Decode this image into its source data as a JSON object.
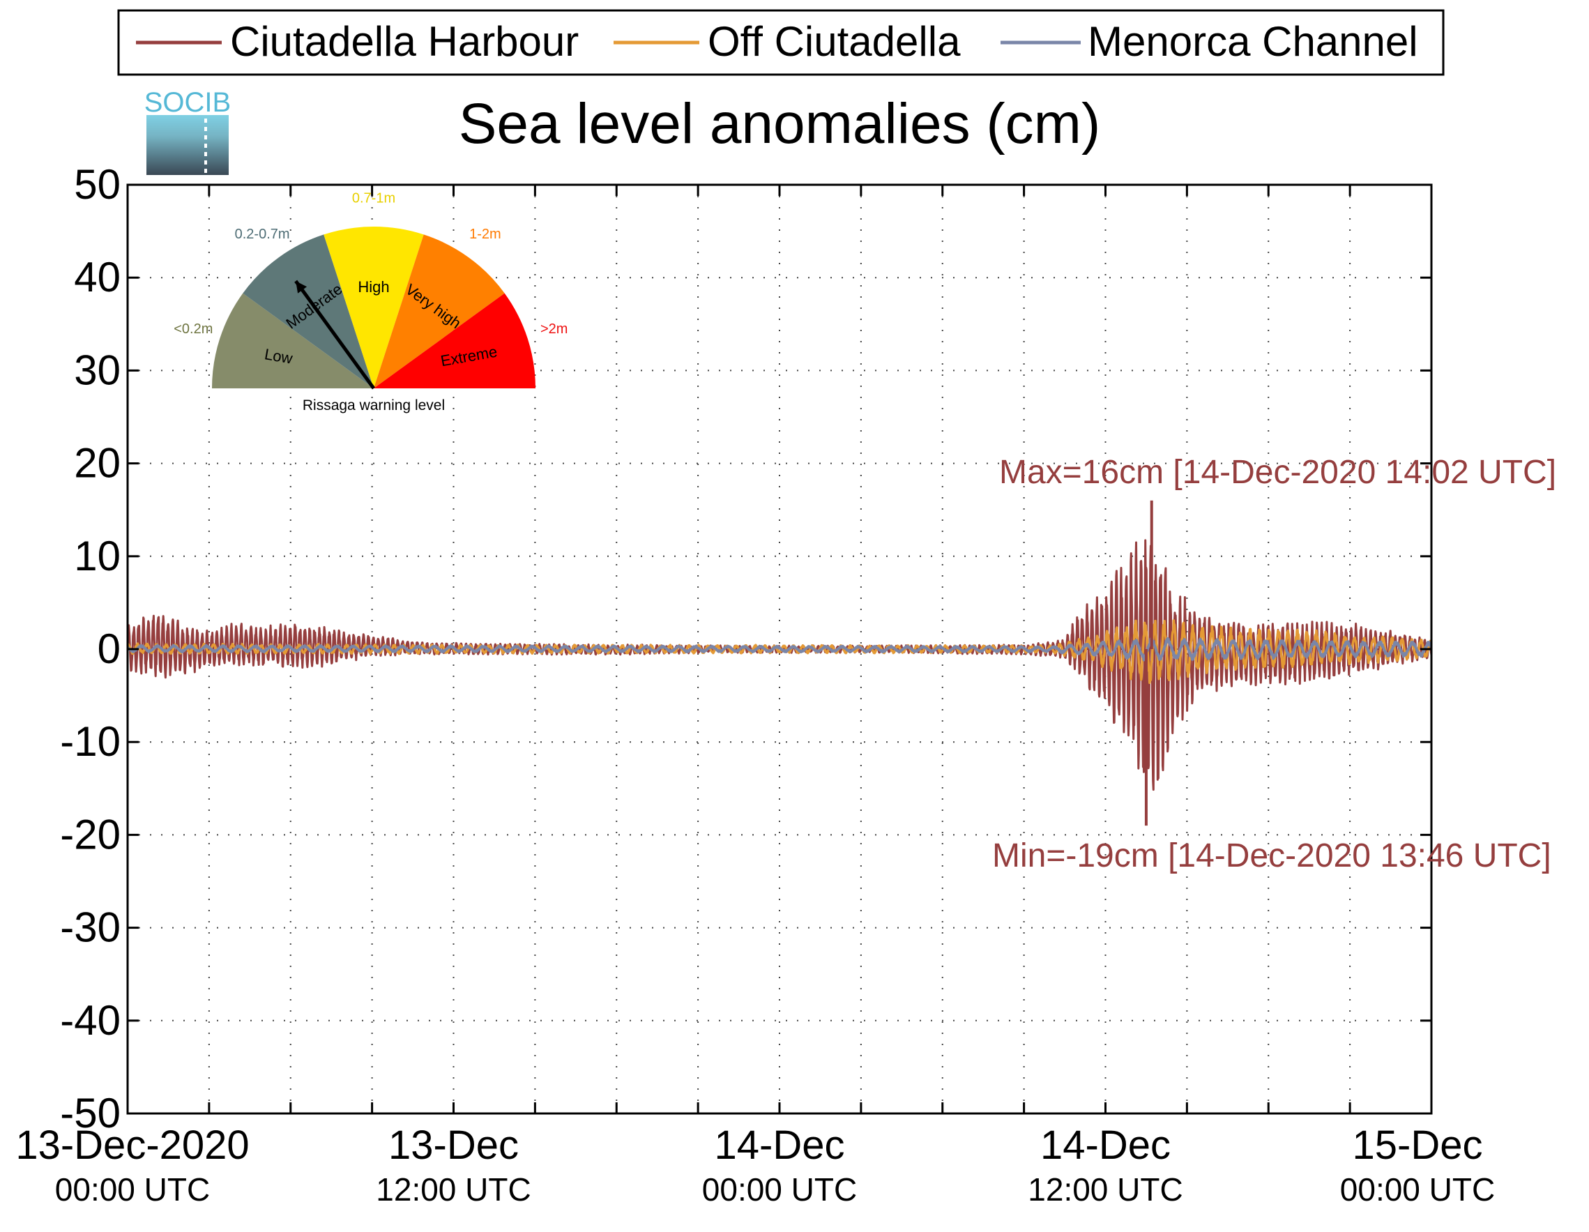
{
  "chart_data": {
    "type": "line",
    "title": "Sea level anomalies (cm)",
    "logo_text": "SOCIB",
    "legend": {
      "placement": "top",
      "entries": [
        {
          "name": "Ciutadella Harbour",
          "color": "#953e3e"
        },
        {
          "name": "Off Ciutadella",
          "color": "#e49a35"
        },
        {
          "name": "Menorca Channel",
          "color": "#7a86a8"
        }
      ]
    },
    "x_axis": {
      "unit": "hours since 13-Dec-2020 00:00 UTC",
      "range": [
        0,
        48
      ],
      "major_ticks": [
        {
          "x": 0,
          "line1": "13-Dec-2020",
          "line2": "00:00 UTC"
        },
        {
          "x": 12,
          "line1": "13-Dec",
          "line2": "12:00 UTC"
        },
        {
          "x": 24,
          "line1": "14-Dec",
          "line2": "00:00 UTC"
        },
        {
          "x": 36,
          "line1": "14-Dec",
          "line2": "12:00 UTC"
        },
        {
          "x": 48,
          "line1": "15-Dec",
          "line2": "00:00 UTC"
        }
      ],
      "minor_ticks": [
        3,
        6,
        9,
        15,
        18,
        21,
        27,
        30,
        33,
        39,
        42,
        45
      ]
    },
    "y_axis": {
      "range": [
        -50,
        50
      ],
      "ticks": [
        50,
        40,
        30,
        20,
        10,
        0,
        -10,
        -20,
        -30,
        -40,
        -50
      ],
      "tick_labels": [
        "50",
        "40",
        "30",
        "20",
        "10",
        "0",
        "-10",
        "-20",
        "-30",
        "-40",
        "-50"
      ]
    },
    "grid": true,
    "series": [
      {
        "name": "Ciutadella Harbour",
        "color": "#953e3e",
        "envelope": [
          {
            "t": 0,
            "max": 2.5,
            "min": -2.5
          },
          {
            "t": 1,
            "max": 4.5,
            "min": -3.5
          },
          {
            "t": 2,
            "max": 3,
            "min": -3
          },
          {
            "t": 3,
            "max": 2,
            "min": -2
          },
          {
            "t": 4,
            "max": 3,
            "min": -2
          },
          {
            "t": 5,
            "max": 2.5,
            "min": -2
          },
          {
            "t": 6,
            "max": 3,
            "min": -2.2
          },
          {
            "t": 7,
            "max": 2.8,
            "min": -2
          },
          {
            "t": 8,
            "max": 2,
            "min": -1.5
          },
          {
            "t": 9,
            "max": 1.5,
            "min": -0.8
          },
          {
            "t": 11,
            "max": 0.8,
            "min": -0.6
          },
          {
            "t": 14,
            "max": 0.6,
            "min": -0.6
          },
          {
            "t": 18,
            "max": 0.5,
            "min": -0.6
          },
          {
            "t": 22,
            "max": 0.4,
            "min": -0.4
          },
          {
            "t": 28,
            "max": 0.4,
            "min": -0.4
          },
          {
            "t": 33,
            "max": 0.5,
            "min": -0.6
          },
          {
            "t": 34.5,
            "max": 1,
            "min": -1
          },
          {
            "t": 35,
            "max": 4,
            "min": -3
          },
          {
            "t": 36,
            "max": 7,
            "min": -7
          },
          {
            "t": 37,
            "max": 11,
            "min": -12
          },
          {
            "t": 37.7,
            "max": 16,
            "min": -19
          },
          {
            "t": 38.5,
            "max": 7,
            "min": -9
          },
          {
            "t": 39.5,
            "max": 4,
            "min": -5
          },
          {
            "t": 41,
            "max": 3,
            "min": -4
          },
          {
            "t": 43,
            "max": 3,
            "min": -4
          },
          {
            "t": 45,
            "max": 3,
            "min": -3
          },
          {
            "t": 48,
            "max": 1,
            "min": -1
          }
        ]
      },
      {
        "name": "Off Ciutadella",
        "color": "#e49a35",
        "envelope": [
          {
            "t": 0,
            "max": 0.6,
            "min": -0.5
          },
          {
            "t": 10,
            "max": 0.5,
            "min": -0.5
          },
          {
            "t": 34,
            "max": 0.4,
            "min": -0.4
          },
          {
            "t": 35.5,
            "max": 1.5,
            "min": -1.5
          },
          {
            "t": 37.5,
            "max": 3.5,
            "min": -4
          },
          {
            "t": 40,
            "max": 2.5,
            "min": -2.5
          },
          {
            "t": 44,
            "max": 2,
            "min": -2
          },
          {
            "t": 48,
            "max": 1,
            "min": -1
          }
        ]
      },
      {
        "name": "Menorca Channel",
        "color": "#7a86a8",
        "envelope": [
          {
            "t": 0,
            "max": 0.4,
            "min": -0.3
          },
          {
            "t": 34,
            "max": 0.3,
            "min": -0.3
          },
          {
            "t": 37.5,
            "max": 1.2,
            "min": -1.2
          },
          {
            "t": 48,
            "max": 0.8,
            "min": -0.8
          }
        ]
      }
    ],
    "annotations": {
      "max": {
        "text": "Max=16cm [14-Dec-2020 14:02 UTC]",
        "x": 37.7,
        "y": 16
      },
      "min": {
        "text": "Min=-19cm [14-Dec-2020 13:46 UTC]",
        "x": 37.5,
        "y": -19
      }
    },
    "gauge": {
      "title": "Rissaga warning level",
      "needle_level": "Moderate",
      "sectors": [
        {
          "label": "Low",
          "range": "<0.2m",
          "color": "#868c6a",
          "range_color": "#6e7440"
        },
        {
          "label": "Moderate",
          "range": "0.2-0.7m",
          "color": "#5e7878",
          "range_color": "#4d6c74"
        },
        {
          "label": "High",
          "range": "0.7-1m",
          "color": "#ffe600",
          "range_color": "#e8d000"
        },
        {
          "label": "Very high",
          "range": "1-2m",
          "color": "#ff8000",
          "range_color": "#ff7a00"
        },
        {
          "label": "Extreme",
          "range": ">2m",
          "color": "#ff0000",
          "range_color": "#ee1010"
        }
      ]
    }
  }
}
